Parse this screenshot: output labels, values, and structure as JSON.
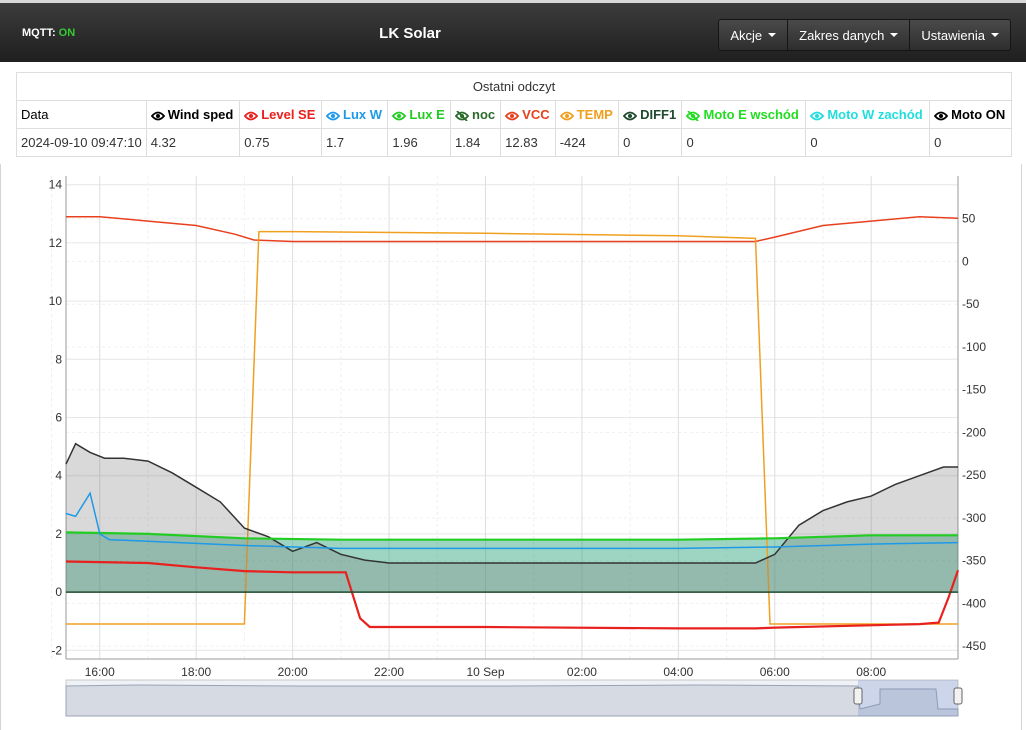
{
  "navbar": {
    "mqtt_label": "MQTT:",
    "mqtt_status": "ON",
    "title": "LK Solar",
    "menus": [
      {
        "label": "Akcje"
      },
      {
        "label": "Zakres danych"
      },
      {
        "label": "Ustawienia"
      }
    ]
  },
  "readings": {
    "title": "Ostatni odczyt",
    "date_header": "Data",
    "date_value": "2024-09-10 09:47:10",
    "columns": [
      {
        "label": "Wind sped",
        "value": "4.32",
        "color": "#000000",
        "hidden": false
      },
      {
        "label": "Level SE",
        "value": "0.75",
        "color": "#e8201e",
        "hidden": false
      },
      {
        "label": "Lux W",
        "value": "1.7",
        "color": "#1e9ae8",
        "hidden": false
      },
      {
        "label": "Lux E",
        "value": "1.96",
        "color": "#22cc22",
        "hidden": false
      },
      {
        "label": "noc",
        "value": "1.84",
        "color": "#2b6b2b",
        "hidden": true
      },
      {
        "label": "VCC",
        "value": "12.83",
        "color": "#e8401e",
        "hidden": false
      },
      {
        "label": "TEMP",
        "value": "-424",
        "color": "#f0a020",
        "hidden": false
      },
      {
        "label": "DIFF1",
        "value": "0",
        "color": "#1e4a2e",
        "hidden": false
      },
      {
        "label": "Moto E wschód",
        "value": "0",
        "color": "#22dd22",
        "hidden": true
      },
      {
        "label": "Moto W zachód",
        "value": "0",
        "color": "#22dddd",
        "hidden": false
      },
      {
        "label": "Moto ON",
        "value": "0",
        "color": "#000000",
        "hidden": false
      }
    ]
  },
  "chart_data": {
    "type": "line",
    "left_axis": {
      "ticks": [
        "14",
        "12",
        "10",
        "8",
        "6",
        "4",
        "2",
        "0",
        "-2"
      ],
      "range": [
        -2.3,
        14.3
      ]
    },
    "right_axis": {
      "ticks": [
        "50",
        "0",
        "-50",
        "-100",
        "-150",
        "-200",
        "-250",
        "-300",
        "-350",
        "-400",
        "-450"
      ],
      "range": [
        -465,
        100
      ]
    },
    "x_axis": {
      "ticks": [
        "16:00",
        "18:00",
        "20:00",
        "22:00",
        "10 Sep",
        "02:00",
        "04:00",
        "06:00",
        "08:00"
      ],
      "range_hours": [
        15.3,
        33.8
      ]
    },
    "grid": true,
    "series": [
      {
        "key": "vcc",
        "color": "#e8401e",
        "axis": "left",
        "x": [
          15.3,
          16,
          17,
          18,
          18.8,
          19.2,
          20,
          22,
          24,
          26,
          28,
          29.6,
          30,
          31,
          32,
          33,
          33.8
        ],
        "y": [
          12.9,
          12.9,
          12.75,
          12.6,
          12.3,
          12.1,
          12.05,
          12.05,
          12.05,
          12.05,
          12.05,
          12.05,
          12.2,
          12.6,
          12.75,
          12.9,
          12.85
        ]
      },
      {
        "key": "temp",
        "color": "#f0a020",
        "axis": "right",
        "x": [
          15.3,
          19.0,
          19.3,
          20,
          24,
          28,
          29.6,
          29.9,
          30,
          33.8
        ],
        "y": [
          -424,
          -424,
          35,
          35,
          33,
          30,
          27,
          -424,
          -424,
          -424
        ]
      },
      {
        "key": "wind",
        "color": "#333333",
        "axis": "left",
        "fill": true,
        "x": [
          15.3,
          15.5,
          15.8,
          16.1,
          16.5,
          17,
          17.5,
          18,
          18.5,
          19,
          19.5,
          20,
          20.5,
          21,
          21.5,
          22,
          24,
          28,
          29.6,
          30,
          30.5,
          31,
          31.5,
          32,
          32.5,
          33,
          33.5,
          33.8
        ],
        "y": [
          4.4,
          5.1,
          4.8,
          4.6,
          4.6,
          4.5,
          4.1,
          3.6,
          3.1,
          2.2,
          1.9,
          1.4,
          1.7,
          1.3,
          1.1,
          1.0,
          1.0,
          1.0,
          1.0,
          1.3,
          2.3,
          2.8,
          3.1,
          3.3,
          3.7,
          4.0,
          4.3,
          4.3
        ]
      },
      {
        "key": "lux_e",
        "color": "#22cc22",
        "axis": "left",
        "x": [
          15.3,
          17,
          19,
          21,
          24,
          28,
          30,
          32,
          33.8
        ],
        "y": [
          2.05,
          2.0,
          1.85,
          1.8,
          1.8,
          1.8,
          1.85,
          1.95,
          1.95
        ]
      },
      {
        "key": "lux_w",
        "color": "#1e9ae8",
        "axis": "left",
        "x": [
          15.3,
          15.5,
          15.8,
          16,
          16.2,
          17,
          19,
          21,
          24,
          28,
          30,
          32,
          33.8
        ],
        "y": [
          2.7,
          2.6,
          3.4,
          2.0,
          1.8,
          1.75,
          1.6,
          1.5,
          1.5,
          1.5,
          1.55,
          1.65,
          1.7
        ]
      },
      {
        "key": "level_se",
        "color": "#e8201e",
        "axis": "left",
        "x": [
          15.3,
          17,
          18,
          19,
          20,
          21.1,
          21.4,
          21.6,
          24,
          28,
          29.6,
          30,
          33,
          33.4,
          33.6,
          33.8
        ],
        "y": [
          1.05,
          1.0,
          0.85,
          0.72,
          0.68,
          0.68,
          -0.9,
          -1.2,
          -1.2,
          -1.25,
          -1.25,
          -1.22,
          -1.1,
          -1.05,
          -0.2,
          0.75
        ]
      }
    ]
  }
}
